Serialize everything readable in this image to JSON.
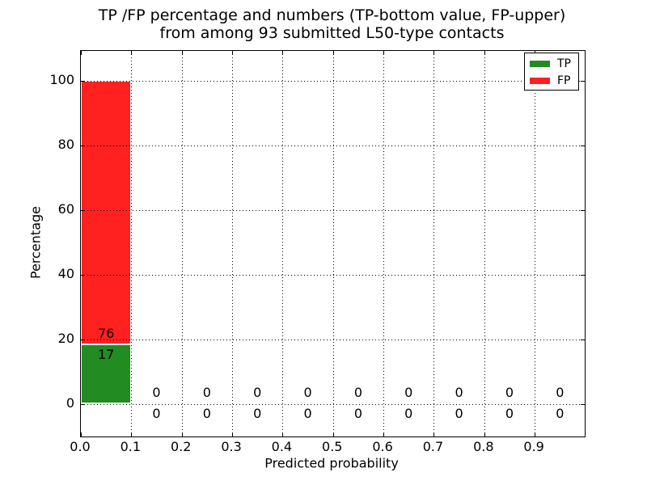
{
  "title": {
    "line1": "TP /FP percentage and numbers (TP-bottom value, FP-upper)",
    "line2": "from among 93 submitted L50-type contacts"
  },
  "axes": {
    "xlabel": "Predicted probability",
    "ylabel": "Percentage",
    "xticks": [
      "0.0",
      "0.1",
      "0.2",
      "0.3",
      "0.4",
      "0.5",
      "0.6",
      "0.7",
      "0.8",
      "0.9"
    ],
    "yticks": [
      "0",
      "20",
      "40",
      "60",
      "80",
      "100"
    ],
    "ytick_values": [
      0,
      20,
      40,
      60,
      80,
      100
    ],
    "xlim": [
      0.0,
      1.0
    ],
    "ylim": [
      -10,
      109
    ],
    "grid": "dotted"
  },
  "legend": {
    "position": "upper-right",
    "items": [
      {
        "label": "TP",
        "color": "#228b22"
      },
      {
        "label": "FP",
        "color": "#ff2020"
      }
    ]
  },
  "chart_data": {
    "type": "bar",
    "stacked": true,
    "title": "TP /FP percentage and numbers (TP-bottom value, FP-upper) from among 93 submitted L50-type contacts",
    "xlabel": "Predicted probability",
    "ylabel": "Percentage",
    "total": 93,
    "bin_width": 0.1,
    "bin_starts": [
      0.0,
      0.1,
      0.2,
      0.3,
      0.4,
      0.5,
      0.6,
      0.7,
      0.8,
      0.9
    ],
    "categories": [
      "0.0-0.1",
      "0.1-0.2",
      "0.2-0.3",
      "0.3-0.4",
      "0.4-0.5",
      "0.5-0.6",
      "0.6-0.7",
      "0.7-0.8",
      "0.8-0.9",
      "0.9-1.0"
    ],
    "series": [
      {
        "name": "TP",
        "color": "#228b22",
        "counts": [
          17,
          0,
          0,
          0,
          0,
          0,
          0,
          0,
          0,
          0
        ]
      },
      {
        "name": "FP",
        "color": "#ff2020",
        "counts": [
          76,
          0,
          0,
          0,
          0,
          0,
          0,
          0,
          0,
          0
        ]
      }
    ],
    "value_labels": "counts shown per bin: TP below stack boundary, FP above stack boundary",
    "ylim": [
      -10,
      109
    ]
  }
}
